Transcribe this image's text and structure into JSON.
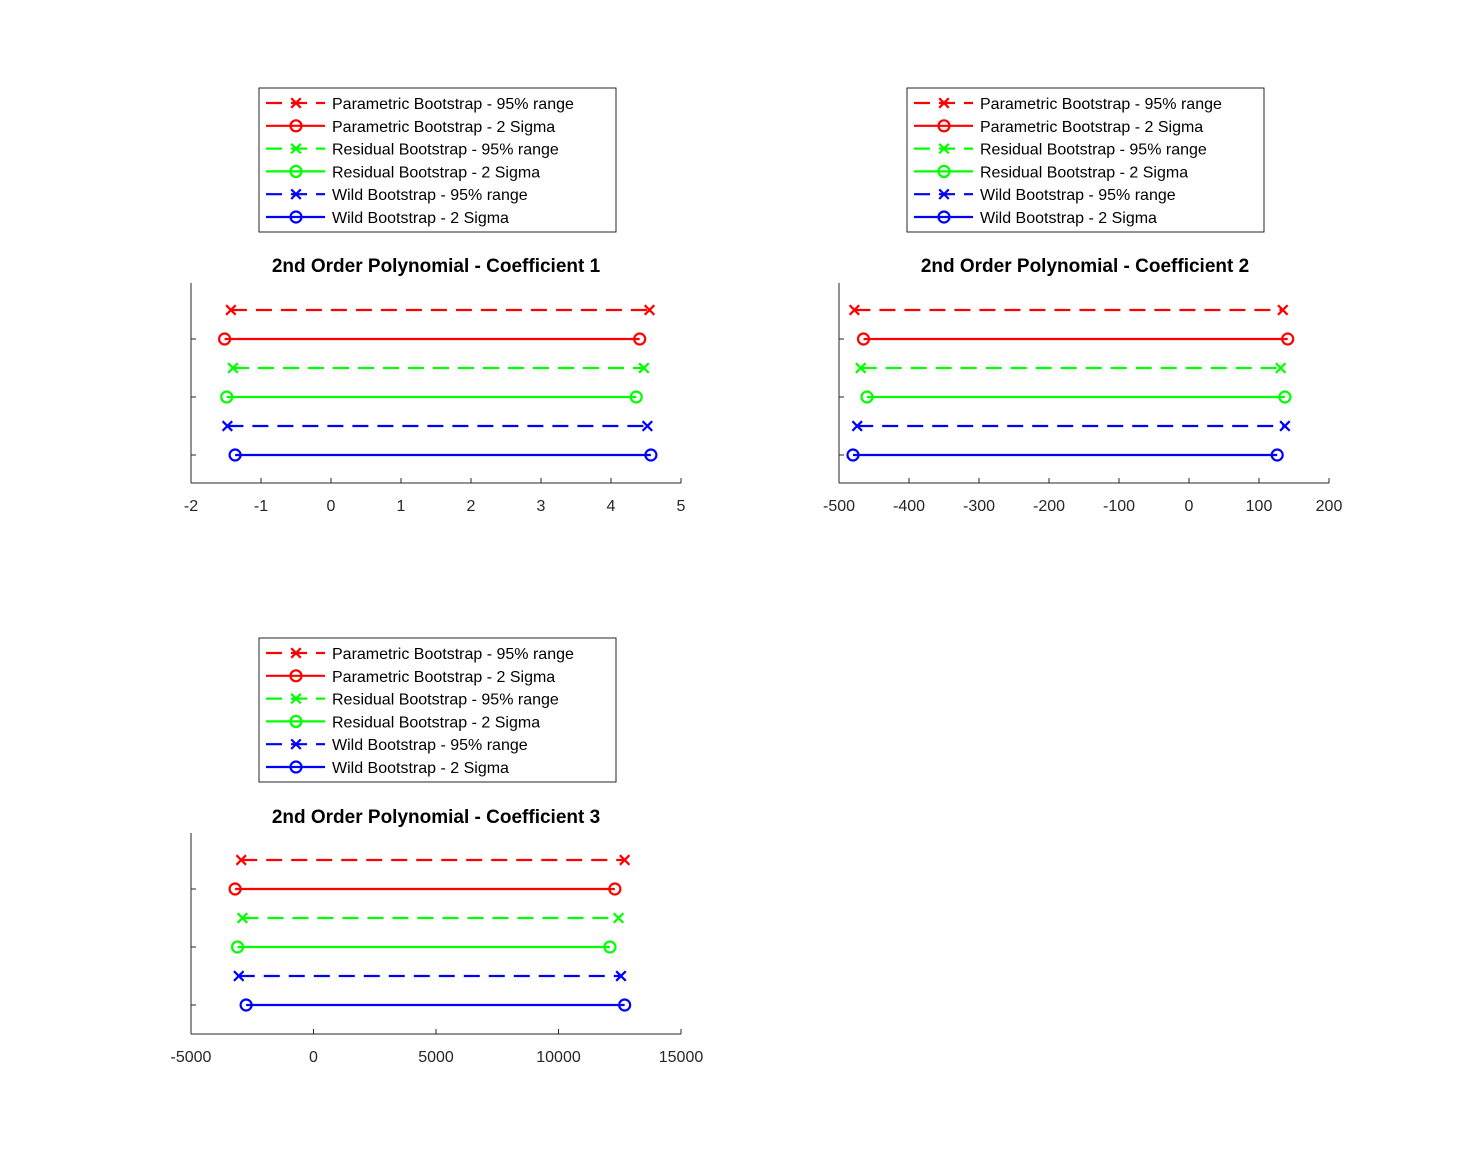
{
  "chart_data": [
    {
      "type": "range",
      "title": "2nd Order Polynomial - Coefficient 1",
      "xlim": [
        -2,
        5
      ],
      "xticks": [
        -2,
        -1,
        0,
        1,
        2,
        3,
        4,
        5
      ],
      "series": [
        {
          "name": "Parametric Bootstrap - 95% range",
          "color": "#ff0000",
          "line": "dashed",
          "marker": "x",
          "low": -1.43,
          "high": 4.55
        },
        {
          "name": "Parametric Bootstrap - 2 Sigma",
          "color": "#ff0000",
          "line": "solid",
          "marker": "o",
          "low": -1.52,
          "high": 4.41
        },
        {
          "name": "Residual Bootstrap - 95% range",
          "color": "#00ff00",
          "line": "dashed",
          "marker": "x",
          "low": -1.4,
          "high": 4.47
        },
        {
          "name": "Residual Bootstrap - 2 Sigma",
          "color": "#00ff00",
          "line": "solid",
          "marker": "o",
          "low": -1.49,
          "high": 4.36
        },
        {
          "name": "Wild Bootstrap - 95% range",
          "color": "#0000ff",
          "line": "dashed",
          "marker": "x",
          "low": -1.48,
          "high": 4.52
        },
        {
          "name": "Wild Bootstrap - 2 Sigma",
          "color": "#0000ff",
          "line": "solid",
          "marker": "o",
          "low": -1.37,
          "high": 4.57
        }
      ]
    },
    {
      "type": "range",
      "title": "2nd Order Polynomial - Coefficient 2",
      "xlim": [
        -500,
        200
      ],
      "xticks": [
        -500,
        -400,
        -300,
        -200,
        -100,
        0,
        100,
        200
      ],
      "series": [
        {
          "name": "Parametric Bootstrap - 95% range",
          "color": "#ff0000",
          "line": "dashed",
          "marker": "x",
          "low": -478,
          "high": 134
        },
        {
          "name": "Parametric Bootstrap - 2 Sigma",
          "color": "#ff0000",
          "line": "solid",
          "marker": "o",
          "low": -465,
          "high": 141
        },
        {
          "name": "Residual Bootstrap - 95% range",
          "color": "#00ff00",
          "line": "dashed",
          "marker": "x",
          "low": -469,
          "high": 131
        },
        {
          "name": "Residual Bootstrap - 2 Sigma",
          "color": "#00ff00",
          "line": "solid",
          "marker": "o",
          "low": -460,
          "high": 137
        },
        {
          "name": "Wild Bootstrap - 95% range",
          "color": "#0000ff",
          "line": "dashed",
          "marker": "x",
          "low": -474,
          "high": 137
        },
        {
          "name": "Wild Bootstrap - 2 Sigma",
          "color": "#0000ff",
          "line": "solid",
          "marker": "o",
          "low": -480,
          "high": 126
        }
      ]
    },
    {
      "type": "range",
      "title": "2nd Order Polynomial - Coefficient 3",
      "xlim": [
        -5000,
        15000
      ],
      "xticks": [
        -5000,
        0,
        5000,
        10000,
        15000
      ],
      "series": [
        {
          "name": "Parametric Bootstrap - 95% range",
          "color": "#ff0000",
          "line": "dashed",
          "marker": "x",
          "low": -2950,
          "high": 12700
        },
        {
          "name": "Parametric Bootstrap - 2 Sigma",
          "color": "#ff0000",
          "line": "solid",
          "marker": "o",
          "low": -3200,
          "high": 12300
        },
        {
          "name": "Residual Bootstrap - 95% range",
          "color": "#00ff00",
          "line": "dashed",
          "marker": "x",
          "low": -2900,
          "high": 12450
        },
        {
          "name": "Residual Bootstrap - 2 Sigma",
          "color": "#00ff00",
          "line": "solid",
          "marker": "o",
          "low": -3100,
          "high": 12100
        },
        {
          "name": "Wild Bootstrap - 95% range",
          "color": "#0000ff",
          "line": "dashed",
          "marker": "x",
          "low": -3050,
          "high": 12550
        },
        {
          "name": "Wild Bootstrap - 2 Sigma",
          "color": "#0000ff",
          "line": "solid",
          "marker": "o",
          "low": -2750,
          "high": 12700
        }
      ]
    }
  ]
}
